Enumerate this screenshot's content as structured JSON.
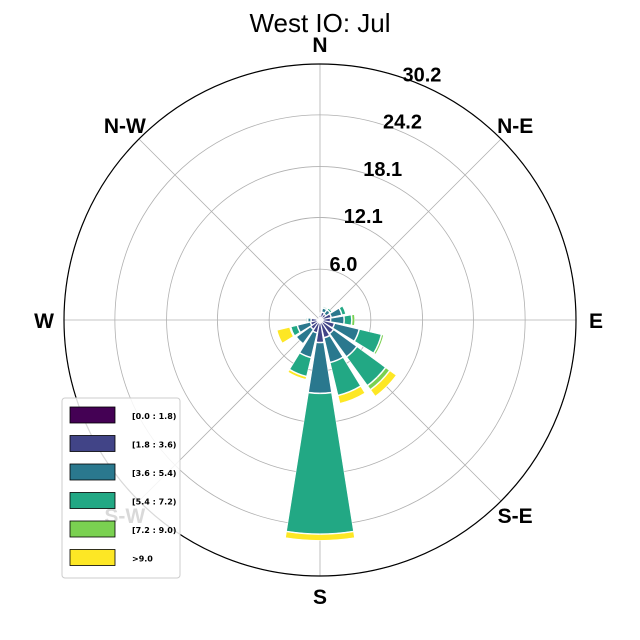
{
  "chart_data": {
    "type": "windrose",
    "title": "West IO: Jul",
    "directions": [
      "N",
      "N-E",
      "E",
      "S-E",
      "S",
      "S-W",
      "W",
      "N-W"
    ],
    "radial_ticks": [
      "6.0",
      "12.1",
      "18.1",
      "24.2",
      "30.2"
    ],
    "radial_tick_values": [
      6.0,
      12.1,
      18.1,
      24.2,
      30.2
    ],
    "rmax": 30.2,
    "grid": true,
    "legend_position": "lower-left",
    "legend": [
      "[0.0 : 1.8)",
      "[1.8 : 3.6)",
      "[3.6 : 5.4)",
      "[5.4 : 7.2)",
      "[7.2 : 9.0)",
      ">9.0"
    ],
    "colors": [
      "#440154",
      "#414487",
      "#2a788e",
      "#22a884",
      "#7ad151",
      "#fde725"
    ],
    "sector_bearings": [
      0,
      22.5,
      45,
      67.5,
      90,
      112.5,
      135,
      157.5,
      180,
      202.5,
      225,
      247.5,
      270,
      292.5,
      315,
      337.5
    ],
    "sectors": [
      [
        0.2,
        0.3,
        0.2,
        0.1,
        0.0,
        0.0
      ],
      [
        0.3,
        0.6,
        0.5,
        0.2,
        0.0,
        0.0
      ],
      [
        0.3,
        0.5,
        0.6,
        0.3,
        0.0,
        0.0
      ],
      [
        0.3,
        1.0,
        1.3,
        0.5,
        0.0,
        0.0
      ],
      [
        0.3,
        0.9,
        1.6,
        0.9,
        0.4,
        0.0
      ],
      [
        0.3,
        1.4,
        3.0,
        2.7,
        0.3,
        0.0
      ],
      [
        0.3,
        1.6,
        3.4,
        4.2,
        0.6,
        1.0
      ],
      [
        0.3,
        1.8,
        3.0,
        4.0,
        0.0,
        1.0
      ],
      [
        0.3,
        2.3,
        6.0,
        16.6,
        0.0,
        0.8
      ],
      [
        0.3,
        1.2,
        3.0,
        2.3,
        0.0,
        0.4
      ],
      [
        0.3,
        1.0,
        2.1,
        0.0,
        0.0,
        0.0
      ],
      [
        0.3,
        0.8,
        1.6,
        0.8,
        0.1,
        1.6
      ],
      [
        0.3,
        0.7,
        0.4,
        0.2,
        0.0,
        0.0
      ],
      [
        0.2,
        0.2,
        0.1,
        0.0,
        0.0,
        0.0
      ],
      [
        0.1,
        0.1,
        0.0,
        0.0,
        0.0,
        0.0
      ],
      [
        0.1,
        0.1,
        0.0,
        0.0,
        0.0,
        0.0
      ]
    ]
  }
}
